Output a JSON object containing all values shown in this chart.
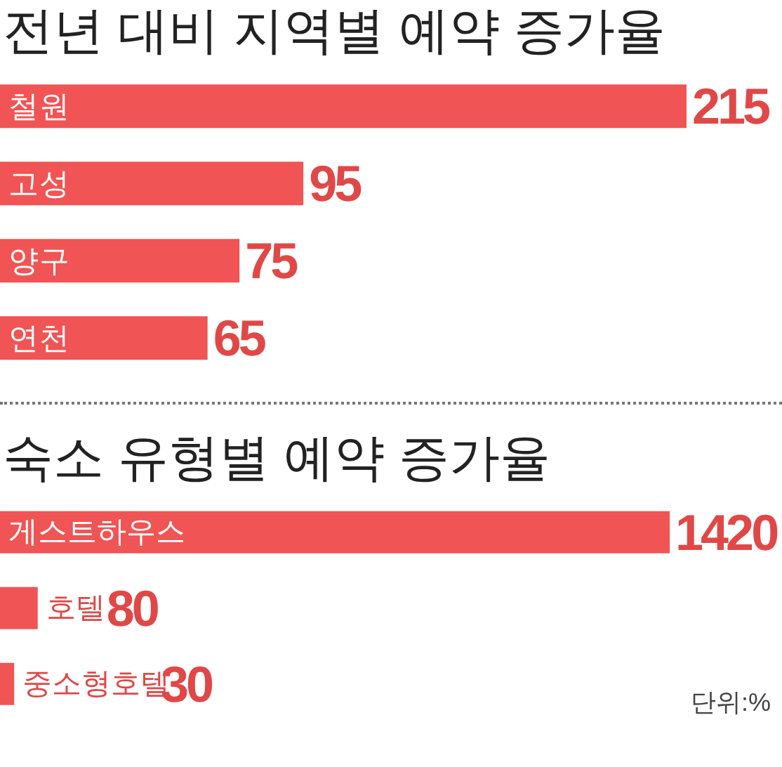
{
  "chart_data": [
    {
      "type": "bar",
      "orientation": "horizontal",
      "title": "전년 대비 지역별 예약 증가율",
      "categories": [
        "철원",
        "고성",
        "양구",
        "연천"
      ],
      "values": [
        215,
        95,
        75,
        65
      ],
      "color": "#f05454",
      "data_labels": true
    },
    {
      "type": "bar",
      "orientation": "horizontal",
      "title": "숙소 유형별 예약 증가율",
      "categories": [
        "게스트하우스",
        "호텔",
        "중소형호텔"
      ],
      "values": [
        1420,
        80,
        30
      ],
      "color": "#f05454",
      "data_labels": true,
      "annotations": [
        "단위:%"
      ]
    }
  ]
}
